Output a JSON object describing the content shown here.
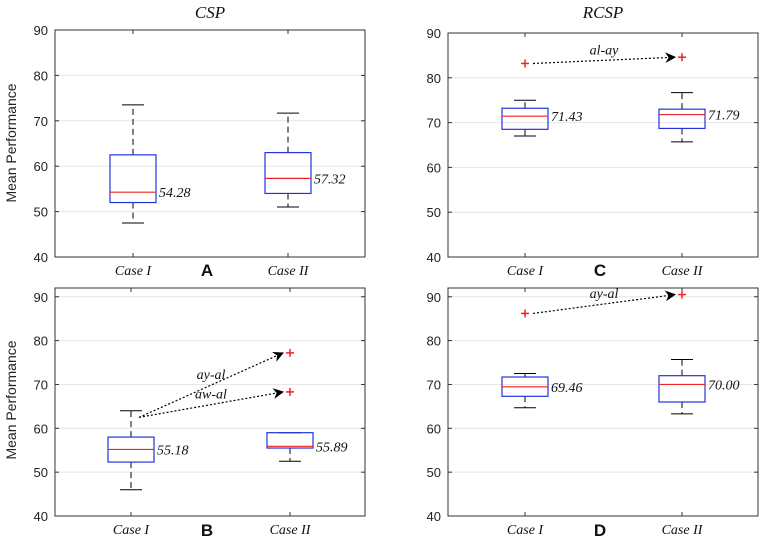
{
  "chart_data": [
    {
      "panel": "A",
      "type": "box",
      "title": "CSP",
      "ylabel": "Mean Performance",
      "ylim": [
        40,
        90
      ],
      "yticks": [
        40,
        50,
        60,
        70,
        80,
        90
      ],
      "categories": [
        "Case I",
        "Case II"
      ],
      "boxes": [
        {
          "min": 47.5,
          "q1": 52,
          "median": 54.28,
          "q3": 62.5,
          "max": 73.5,
          "median_label": "54.28",
          "outliers": []
        },
        {
          "min": 51,
          "q1": 54,
          "median": 57.32,
          "q3": 63,
          "max": 71.7,
          "median_label": "57.32",
          "outliers": []
        }
      ],
      "annotations": []
    },
    {
      "panel": "C",
      "type": "box",
      "title": "RCSP",
      "ylabel": "",
      "ylim": [
        40,
        90
      ],
      "yticks": [
        40,
        50,
        60,
        70,
        80,
        90
      ],
      "categories": [
        "Case I",
        "Case II"
      ],
      "boxes": [
        {
          "min": 67,
          "q1": 68.5,
          "median": 71.43,
          "q3": 73.2,
          "max": 75,
          "median_label": "71.43",
          "outliers": [
            83.2
          ]
        },
        {
          "min": 65.7,
          "q1": 68.7,
          "median": 71.79,
          "q3": 73,
          "max": 76.7,
          "median_label": "71.79",
          "outliers": [
            84.6
          ]
        }
      ],
      "annotations": [
        {
          "label": "al-ay",
          "from": [
            0,
            83.2
          ],
          "to": [
            1,
            84.6
          ]
        }
      ]
    },
    {
      "panel": "B",
      "type": "box",
      "title": "",
      "ylabel": "Mean Performance",
      "ylim": [
        40,
        92
      ],
      "yticks": [
        40,
        50,
        60,
        70,
        80,
        90
      ],
      "categories": [
        "Case I",
        "Case II"
      ],
      "boxes": [
        {
          "min": 46,
          "q1": 52.3,
          "median": 55.18,
          "q3": 58,
          "max": 64,
          "median_label": "55.18",
          "outliers": []
        },
        {
          "min": 52.5,
          "q1": 55.5,
          "median": 55.89,
          "q3": 59,
          "max": 59,
          "median_label": "55.89",
          "outliers": [
            77.2,
            68.3
          ]
        }
      ],
      "annotations": [
        {
          "label": "ay-al",
          "from": [
            0,
            62.5
          ],
          "to": [
            1,
            77.2
          ]
        },
        {
          "label": "aw-al",
          "from": [
            0,
            62.5
          ],
          "to": [
            1,
            68.3
          ]
        }
      ]
    },
    {
      "panel": "D",
      "type": "box",
      "title": "",
      "ylabel": "",
      "ylim": [
        40,
        92
      ],
      "yticks": [
        40,
        50,
        60,
        70,
        80,
        90
      ],
      "categories": [
        "Case I",
        "Case II"
      ],
      "boxes": [
        {
          "min": 64.7,
          "q1": 67.3,
          "median": 69.46,
          "q3": 71.7,
          "max": 72.5,
          "median_label": "69.46",
          "outliers": [
            86.2
          ]
        },
        {
          "min": 63.3,
          "q1": 66,
          "median": 70.0,
          "q3": 72,
          "max": 75.7,
          "median_label": "70.00",
          "outliers": [
            90.5
          ]
        }
      ],
      "annotations": [
        {
          "label": "ay-al",
          "from": [
            0,
            86.2
          ],
          "to": [
            1,
            90.5
          ]
        }
      ]
    }
  ]
}
